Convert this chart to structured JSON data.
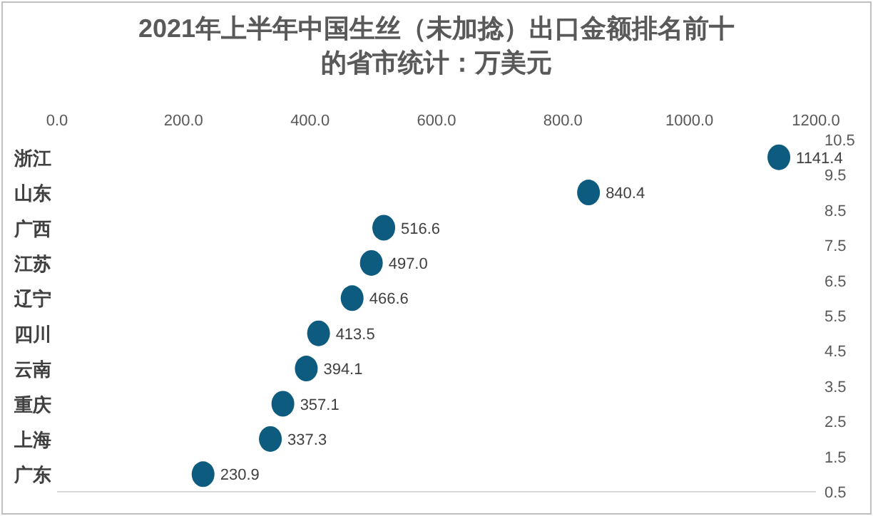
{
  "chart_data": {
    "type": "scatter",
    "title": "2021年上半年中国生丝（未加捻）出口金额排名前十的省市统计：万美元",
    "orientation": "horizontal",
    "categories": [
      "浙江",
      "山东",
      "广西",
      "江苏",
      "辽宁",
      "四川",
      "云南",
      "重庆",
      "上海",
      "广东"
    ],
    "values": [
      1141.4,
      840.4,
      516.6,
      497.0,
      466.6,
      413.5,
      394.1,
      357.1,
      337.3,
      230.9
    ],
    "value_labels": [
      "1141.4",
      "840.4",
      "516.6",
      "497.0",
      "466.6",
      "413.5",
      "394.1",
      "357.1",
      "337.3",
      "230.9"
    ],
    "color": "#0d5b7f",
    "marker": "circle",
    "xlim": [
      0,
      1200
    ],
    "xticks": [
      {
        "value": 0,
        "label": "0.0"
      },
      {
        "value": 200,
        "label": "200.0"
      },
      {
        "value": 400,
        "label": "400.0"
      },
      {
        "value": 600,
        "label": "600.0"
      },
      {
        "value": 800,
        "label": "800.0"
      },
      {
        "value": 1000,
        "label": "1000.0"
      },
      {
        "value": 1200,
        "label": "1200.0"
      }
    ],
    "y2lim": [
      0.5,
      10.5
    ],
    "y2ticks": [
      0.5,
      1.5,
      2.5,
      3.5,
      4.5,
      5.5,
      6.5,
      7.5,
      8.5,
      9.5,
      10.5
    ],
    "grid": false
  }
}
